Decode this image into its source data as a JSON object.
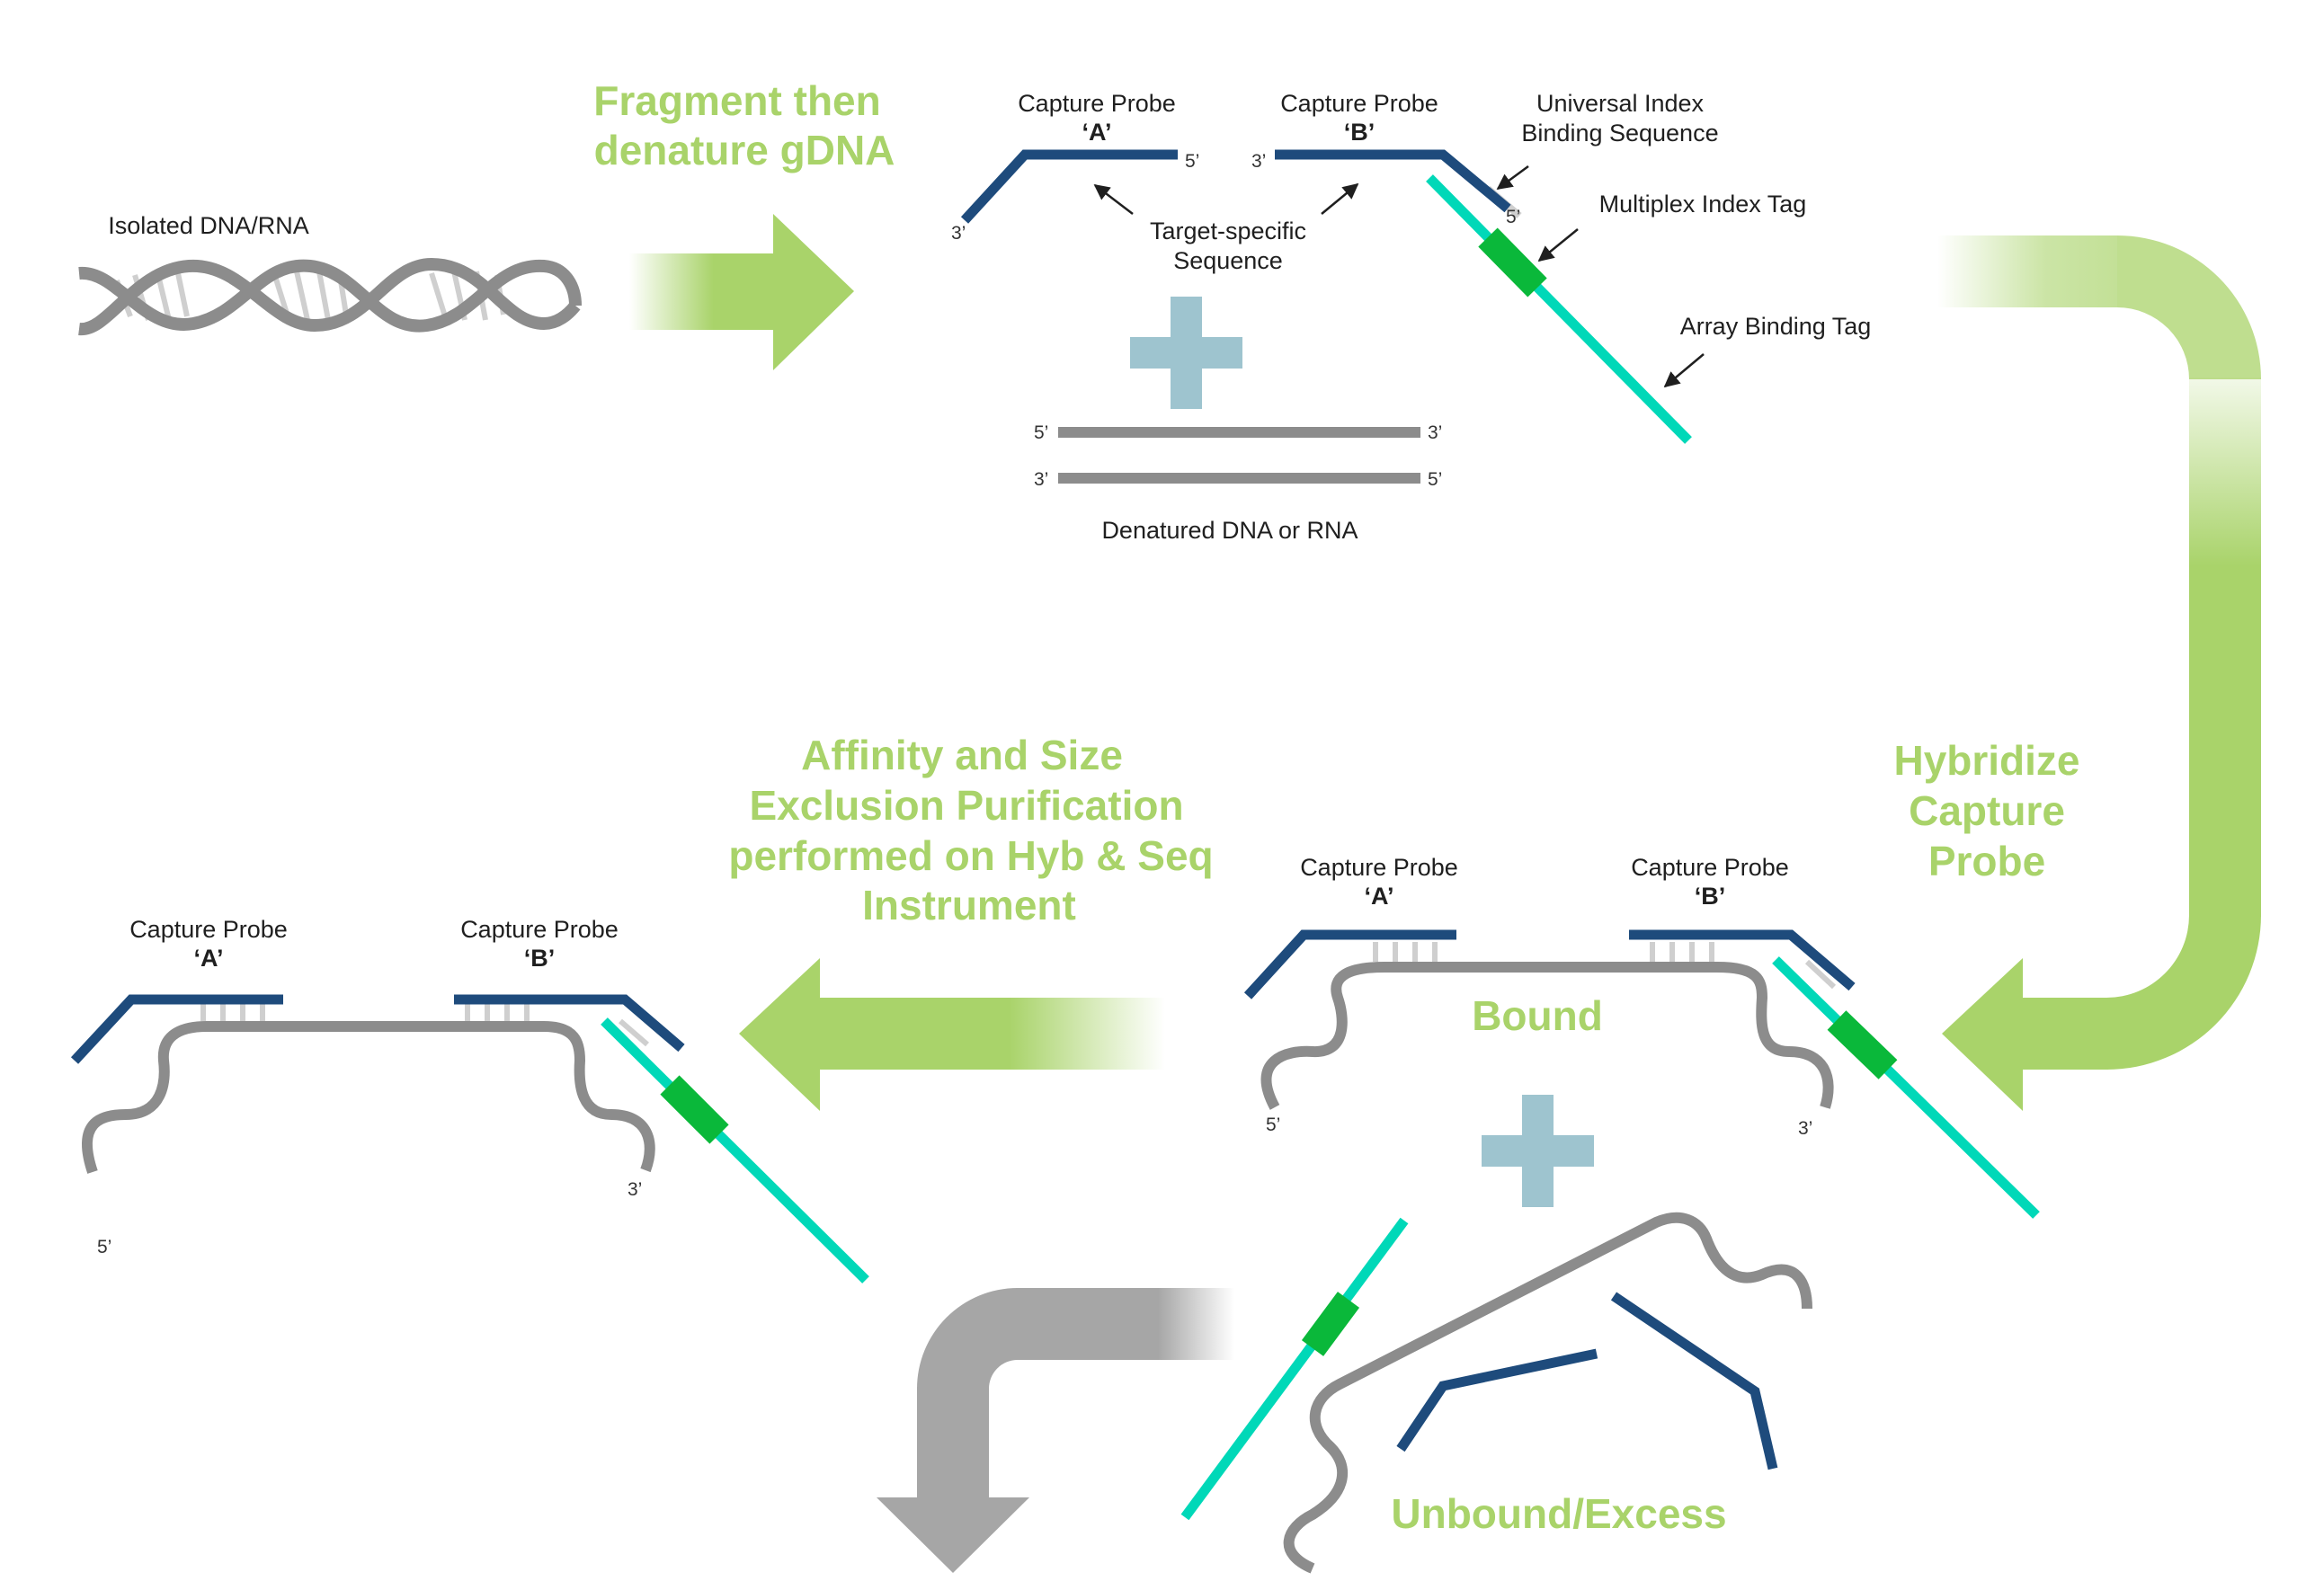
{
  "colors": {
    "probe": "#1e4b7c",
    "tag_line": "#00d8b8",
    "index_tag": "#0ab83a",
    "dna": "#8c8c8c",
    "step_text": "#a9d36a",
    "plus": "#9ec4cf",
    "gray_arrow": "#a6a6a6"
  },
  "top": {
    "isolated_label": "Isolated DNA/RNA",
    "step1": [
      "Fragment then",
      "denature gDNA"
    ],
    "probe_a": [
      "Capture Probe",
      "‘A’"
    ],
    "probe_b": [
      "Capture Probe",
      "‘B’"
    ],
    "universal_index": [
      "Universal Index",
      "Binding Sequence"
    ],
    "multiplex_tag": "Multiplex Index Tag",
    "array_tag": "Array Binding Tag",
    "target_specific": [
      "Target-specific",
      "Sequence"
    ],
    "denatured_label": "Denatured DNA or RNA",
    "ends": {
      "a_3": "3’",
      "a_5": "5’",
      "b_3": "3’",
      "b_5": "5’",
      "d1_left": "5’",
      "d1_right": "3’",
      "d2_left": "3’",
      "d2_right": "5’"
    }
  },
  "middle": {
    "hybridize": [
      "Hybridize",
      "Capture",
      "Probe"
    ],
    "purify": [
      "Affinity and Size",
      "Exclusion Purification",
      "performed on Hyb & Seq",
      "Instrument"
    ],
    "bound_label": "Bound",
    "probe_a": [
      "Capture Probe",
      "‘A’"
    ],
    "probe_b": [
      "Capture Probe",
      "‘B’"
    ],
    "bound_5": "5’",
    "bound_3": "3’",
    "left_probe_a": [
      "Capture Probe",
      "‘A’"
    ],
    "left_probe_b": [
      "Capture Probe",
      "‘B’"
    ],
    "left_3": "3’",
    "left_5": "5’"
  },
  "bottom": {
    "unbound_label": "Unbound/Excess"
  }
}
